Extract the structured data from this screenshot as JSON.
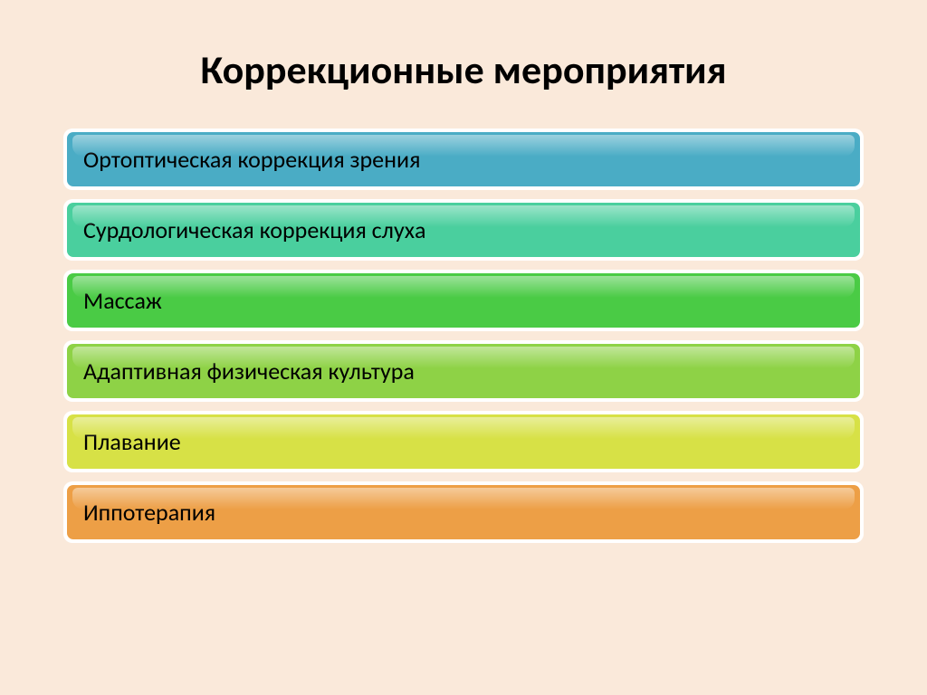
{
  "title": "Коррекционные мероприятия",
  "title_fontsize": 44,
  "title_color": "#000000",
  "background_color": "#fae9da",
  "item_fontsize": 26,
  "item_text_color": "#000000",
  "item_border_radius": 7,
  "wrapper_color": "#ffffff",
  "items": [
    {
      "label": "Ортоптическая коррекция зрения",
      "color": "#4aacc5"
    },
    {
      "label": "Сурдологическая коррекция слуха",
      "color": "#4acf9e"
    },
    {
      "label": "Массаж",
      "color": "#4acb45"
    },
    {
      "label": "Адаптивная физическая культура",
      "color": "#8ed246"
    },
    {
      "label": "Плавание",
      "color": "#d7e146"
    },
    {
      "label": "Иппотерапия",
      "color": "#ed9f46"
    }
  ]
}
